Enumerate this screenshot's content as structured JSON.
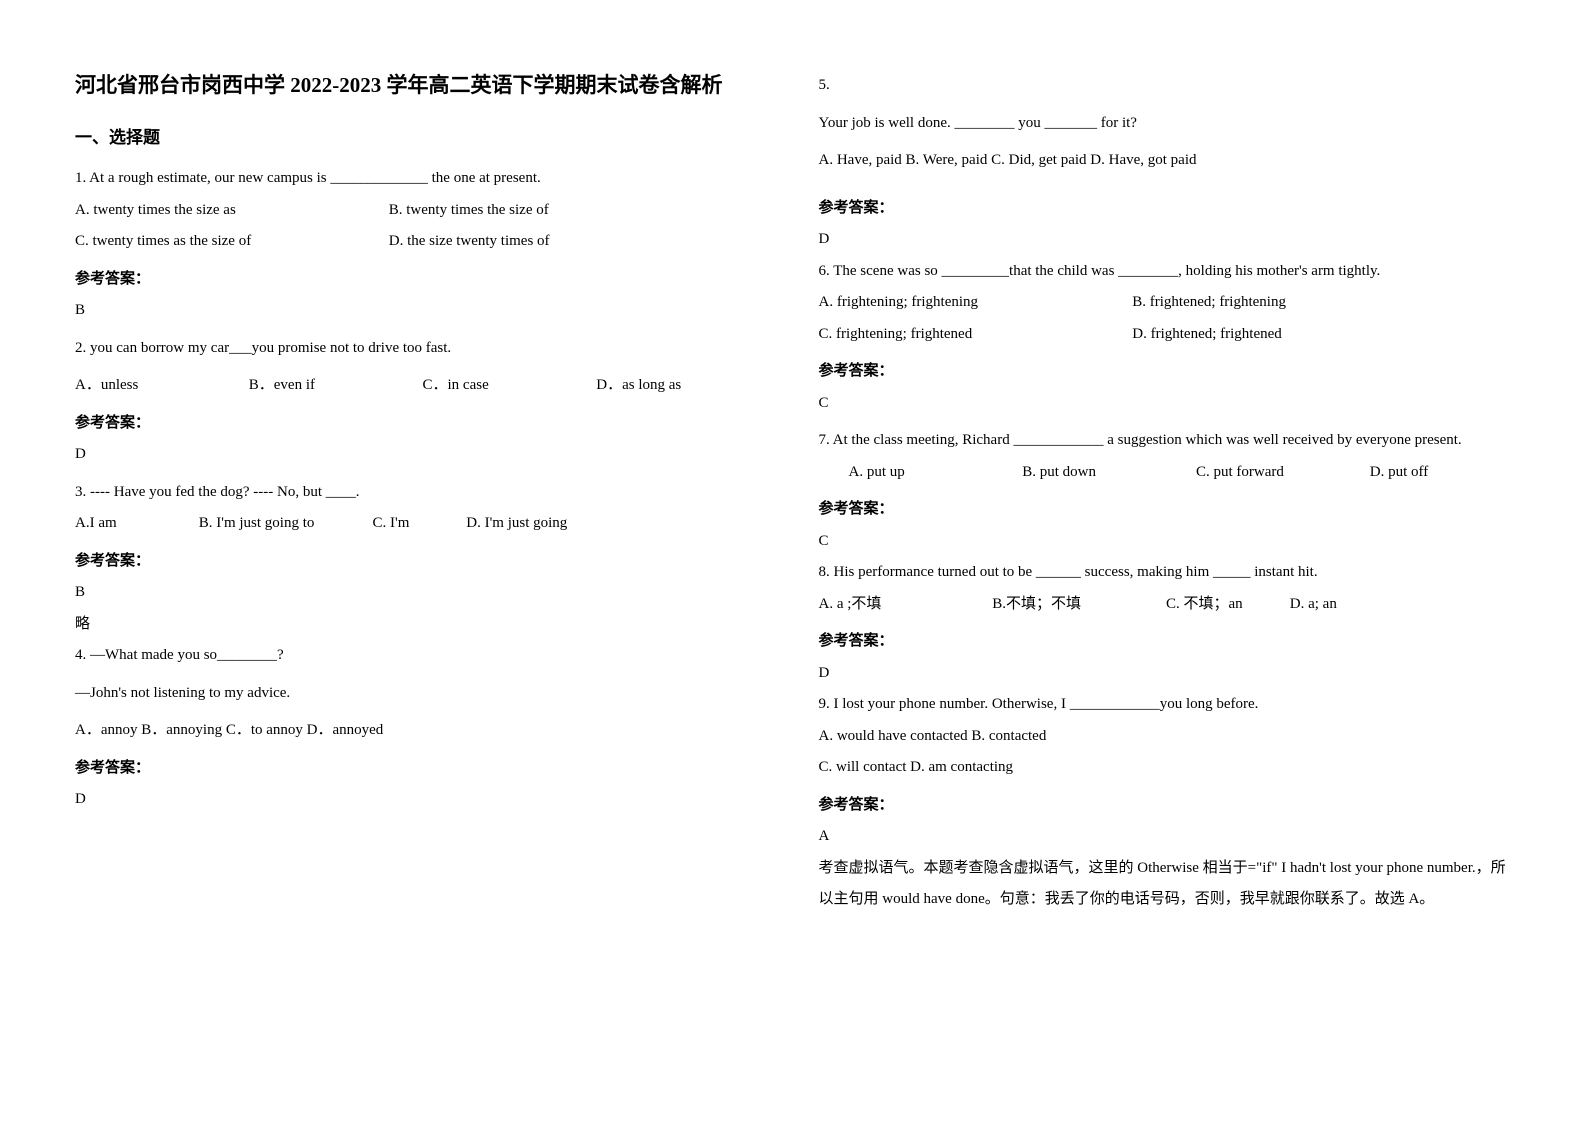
{
  "doc": {
    "title": "河北省邢台市岗西中学 2022-2023 学年高二英语下学期期末试卷含解析",
    "section1": "一、选择题",
    "answer_label": "参考答案：",
    "omit": "略",
    "q1": {
      "stem": "1. At a rough estimate, our new campus is _____________ the one at present.",
      "a": "A. twenty times the size as",
      "b": "B. twenty times the size of",
      "c": "C. twenty times as the size of",
      "d": "D. the size twenty times of",
      "ans": "B"
    },
    "q2": {
      "stem": "2. you can borrow my car___you promise not to drive too fast.",
      "a": "A．unless",
      "b": "B．even if",
      "c": "C．in case",
      "d": "D．as long as",
      "ans": "D"
    },
    "q3": {
      "stemline": "3. ---- Have you fed the dog?          ---- No, but ____.",
      "a": "A.I am",
      "b": "B. I'm just going to",
      "c": "C. I'm",
      "d": "D. I'm just going",
      "ans": "B"
    },
    "q4": {
      "stem1": "4. —What made you so________?",
      "stem2": "—John's not listening to my advice.",
      "opts": "A．annoy  B．annoying  C．to annoy  D．annoyed",
      "ans": "D"
    },
    "q5": {
      "num": "5.",
      "stem": "Your job is well done. ________ you _______ for it?",
      "opts": "A. Have, paid  B. Were, paid   C. Did, get paid D. Have, got paid",
      "ans": "D"
    },
    "q6": {
      "stem": "6. The scene was so _________that the child was ________, holding his mother's arm tightly.",
      "a": "A. frightening; frightening",
      "b": "B. frightened; frightening",
      "c": "C. frightening; frightened",
      "d": "D. frightened; frightened",
      "ans": "C"
    },
    "q7": {
      "stem": "7. At the class meeting, Richard ____________ a suggestion which was well received by everyone present.",
      "a": "A. put up",
      "b": "B. put down",
      "c": "C. put forward",
      "d": "D. put off",
      "ans": "C"
    },
    "q8": {
      "stem": "8. His performance turned out to be ______ success, making him _____ instant hit.",
      "a": "A. a ;不填",
      "b": "B.不填；不填",
      "c": "C. 不填；an",
      "d": "D. a; an",
      "ans": "D"
    },
    "q9": {
      "stem": "9. I lost your phone number. Otherwise, I ____________you long before.",
      "l1": "A. would have contacted   B. contacted",
      "l2": "C. will contact   D. am contacting",
      "ans": "A",
      "exp": "考查虚拟语气。本题考查隐含虚拟语气，这里的 Otherwise 相当于=\"if\" I hadn't lost your phone number.，所以主句用 would have done。句意：我丢了你的电话号码，否则，我早就跟你联系了。故选 A。"
    }
  }
}
